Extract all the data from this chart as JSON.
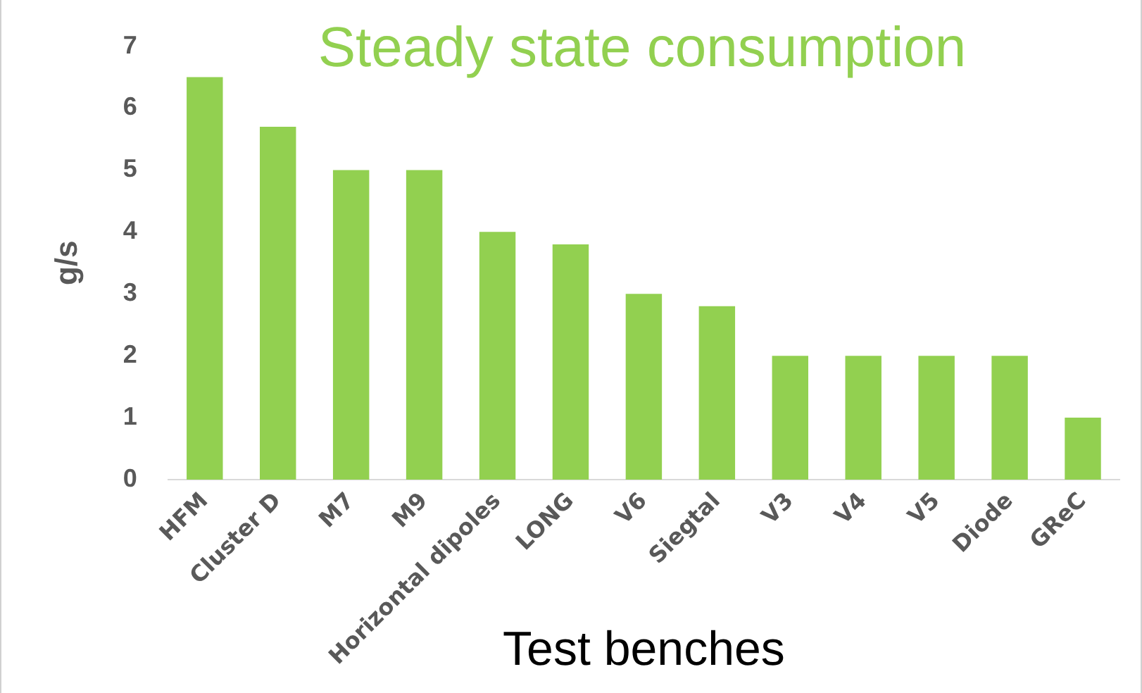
{
  "chart_data": {
    "type": "bar",
    "title": "Steady state consumption",
    "xlabel": "Test benches",
    "ylabel": "g/s",
    "categories": [
      "HFM",
      "Cluster D",
      "M7",
      "M9",
      "Horizontal dipoles",
      "LONG",
      "V6",
      "Siegtal",
      "V3",
      "V4",
      "V5",
      "Diode",
      "GReC"
    ],
    "values": [
      6.5,
      5.7,
      5,
      5,
      4,
      3.8,
      3,
      2.8,
      2,
      2,
      2,
      2,
      1
    ],
    "color": "#92d050",
    "ylim": [
      0,
      7
    ],
    "yticks": [
      0,
      1,
      2,
      3,
      4,
      5,
      6,
      7
    ],
    "grid": false,
    "legend": false
  }
}
